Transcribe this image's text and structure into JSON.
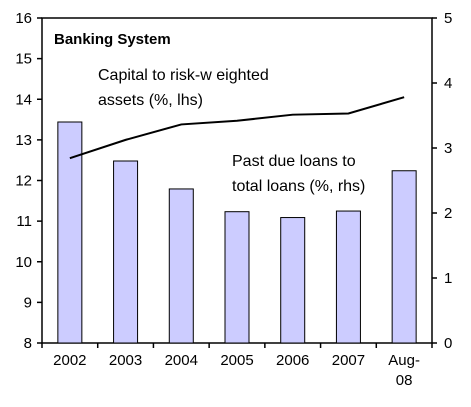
{
  "chart_data": {
    "type": "bar",
    "title": "Banking System",
    "categories": [
      "2002",
      "2003",
      "2004",
      "2005",
      "2006",
      "2007",
      "Aug-08"
    ],
    "category_lines": [
      [
        "2002"
      ],
      [
        "2003"
      ],
      [
        "2004"
      ],
      [
        "2005"
      ],
      [
        "2006"
      ],
      [
        "2007"
      ],
      [
        "Aug-",
        "08"
      ]
    ],
    "series": [
      {
        "type": "line",
        "axis": "left",
        "values": [
          12.55,
          13.0,
          13.38,
          13.47,
          13.62,
          13.65,
          14.05
        ],
        "color": "#000000"
      },
      {
        "type": "bar",
        "axis": "right",
        "values": [
          3.4,
          2.8,
          2.37,
          2.02,
          1.93,
          2.03,
          2.65
        ],
        "color": "#ccccff"
      }
    ],
    "annotations": [
      {
        "lines": [
          "Capital to risk-w eighted",
          "assets (%, lhs)"
        ],
        "anchor": "line"
      },
      {
        "lines": [
          "Past due loans to",
          "total loans (%, rhs)"
        ],
        "anchor": "bars"
      }
    ],
    "left_axis": {
      "min": 8,
      "max": 16,
      "ticks": [
        8,
        9,
        10,
        11,
        12,
        13,
        14,
        15,
        16
      ]
    },
    "right_axis": {
      "min": 0,
      "max": 5,
      "ticks": [
        0,
        1,
        2,
        3,
        4,
        5
      ]
    },
    "grid": false,
    "legend": "none"
  }
}
